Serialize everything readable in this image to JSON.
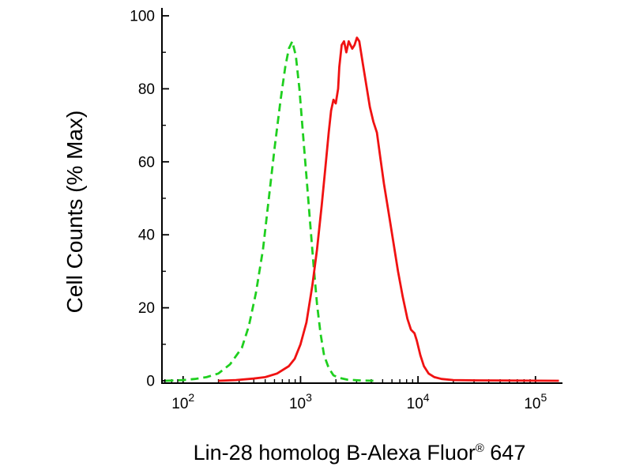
{
  "chart_data": {
    "type": "line",
    "title": "",
    "xlabel": "Lin-28 homolog B-Alexa Fluor® 647",
    "xlabel_parts": {
      "main": "Lin-28 homolog B-Alexa Fluor",
      "reg": "®",
      "suffix": " 647"
    },
    "ylabel": "Cell Counts (% Max)",
    "x_scale": "log10",
    "x_range_log": [
      1.82,
      5.23
    ],
    "ylim": [
      0,
      100
    ],
    "y_ticks": [
      0,
      20,
      40,
      60,
      80,
      100
    ],
    "y_minor_ticks": [
      10,
      30,
      50,
      70,
      90
    ],
    "x_tick_base": "10",
    "x_tick_exponents": [
      2,
      3,
      4,
      5
    ],
    "grid": false,
    "legend": "none",
    "series": [
      {
        "id": "green-dashed",
        "name": "green dashed histogram (peak ~93% at ~9e2)",
        "color": "#1fcf1f",
        "dash": "10 6",
        "points": [
          [
            1.85,
            0
          ],
          [
            2.0,
            0.2
          ],
          [
            2.1,
            0.5
          ],
          [
            2.2,
            1
          ],
          [
            2.3,
            2
          ],
          [
            2.4,
            4.5
          ],
          [
            2.5,
            9
          ],
          [
            2.56,
            15
          ],
          [
            2.62,
            24
          ],
          [
            2.68,
            36
          ],
          [
            2.73,
            50
          ],
          [
            2.78,
            64
          ],
          [
            2.83,
            77
          ],
          [
            2.87,
            86
          ],
          [
            2.9,
            91
          ],
          [
            2.93,
            93
          ],
          [
            2.96,
            89
          ],
          [
            2.99,
            80
          ],
          [
            3.02,
            68
          ],
          [
            3.05,
            56
          ],
          [
            3.08,
            44
          ],
          [
            3.11,
            32
          ],
          [
            3.14,
            21
          ],
          [
            3.17,
            13
          ],
          [
            3.2,
            7
          ],
          [
            3.24,
            3.5
          ],
          [
            3.28,
            1.5
          ],
          [
            3.33,
            0.8
          ],
          [
            3.4,
            0.3
          ],
          [
            3.5,
            0.1
          ],
          [
            3.62,
            0
          ]
        ]
      },
      {
        "id": "red-solid",
        "name": "red solid histogram (peak ~94% at ~3e3)",
        "color": "#f01212",
        "dash": "",
        "points": [
          [
            2.3,
            0
          ],
          [
            2.45,
            0.2
          ],
          [
            2.6,
            0.6
          ],
          [
            2.7,
            1
          ],
          [
            2.8,
            2
          ],
          [
            2.9,
            4
          ],
          [
            2.95,
            6
          ],
          [
            3.0,
            10
          ],
          [
            3.05,
            16
          ],
          [
            3.1,
            26
          ],
          [
            3.14,
            36
          ],
          [
            3.18,
            48
          ],
          [
            3.21,
            58
          ],
          [
            3.24,
            68
          ],
          [
            3.26,
            74
          ],
          [
            3.28,
            77
          ],
          [
            3.3,
            76
          ],
          [
            3.32,
            80
          ],
          [
            3.33,
            86
          ],
          [
            3.35,
            92
          ],
          [
            3.37,
            93
          ],
          [
            3.39,
            90
          ],
          [
            3.41,
            93
          ],
          [
            3.44,
            91
          ],
          [
            3.46,
            92
          ],
          [
            3.48,
            94
          ],
          [
            3.5,
            93
          ],
          [
            3.53,
            87
          ],
          [
            3.56,
            81
          ],
          [
            3.59,
            75
          ],
          [
            3.62,
            71
          ],
          [
            3.65,
            68
          ],
          [
            3.68,
            61
          ],
          [
            3.71,
            54
          ],
          [
            3.75,
            46
          ],
          [
            3.79,
            38
          ],
          [
            3.83,
            30
          ],
          [
            3.87,
            23
          ],
          [
            3.91,
            17
          ],
          [
            3.94,
            14
          ],
          [
            3.97,
            13
          ],
          [
            3.99,
            11
          ],
          [
            4.02,
            7
          ],
          [
            4.05,
            4
          ],
          [
            4.09,
            2
          ],
          [
            4.14,
            1
          ],
          [
            4.2,
            0.5
          ],
          [
            4.3,
            0.2
          ],
          [
            4.5,
            0.1
          ],
          [
            5.2,
            0
          ]
        ]
      }
    ],
    "axis_color": "#000000"
  }
}
